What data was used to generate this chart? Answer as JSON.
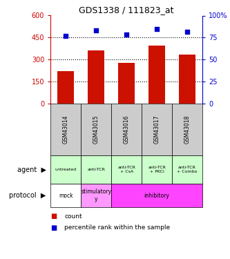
{
  "title": "GDS1338 / 111823_at",
  "samples": [
    "GSM43014",
    "GSM43015",
    "GSM43016",
    "GSM43017",
    "GSM43018"
  ],
  "counts": [
    220,
    360,
    278,
    395,
    335
  ],
  "percentile_ranks": [
    76.5,
    83.5,
    78.5,
    84.5,
    81.5
  ],
  "bar_color": "#cc1100",
  "dot_color": "#0000cc",
  "left_ylim": [
    0,
    600
  ],
  "left_yticks": [
    0,
    150,
    300,
    450,
    600
  ],
  "right_ylim": [
    0,
    100
  ],
  "right_yticks": [
    0,
    25,
    50,
    75,
    100
  ],
  "right_yticklabels": [
    "0",
    "25",
    "50",
    "75",
    "100%"
  ],
  "agent_labels": [
    "untreated",
    "anti-TCR",
    "anti-TCR\n+ CsA",
    "anti-TCR\n+ PKCi",
    "anti-TCR\n+ Combo"
  ],
  "agent_bg": "#ccffcc",
  "protocol_mock_bg": "#ffffff",
  "protocol_stim_bg": "#ff99ff",
  "protocol_inhib_bg": "#ff44ff",
  "sample_bg": "#cccccc",
  "left_tick_color": "#cc0000",
  "right_tick_color": "#0000cc",
  "grid_color": "#000000",
  "grid_dotted_vals": [
    150,
    300,
    450
  ]
}
